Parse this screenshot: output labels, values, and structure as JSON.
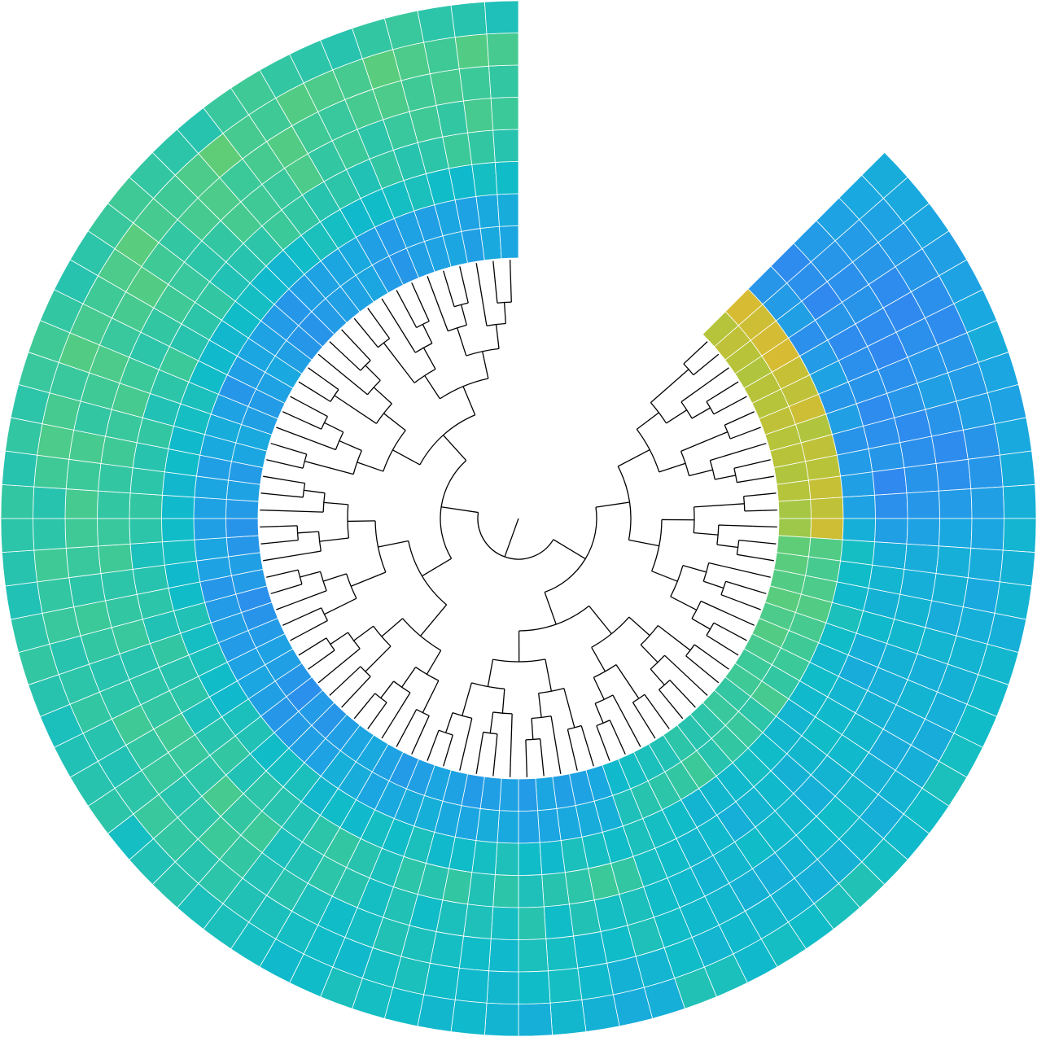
{
  "chart_data": {
    "type": "circular_heatmap",
    "vlim": [
      0,
      100
    ],
    "colormap": [
      {
        "value": 0,
        "color": "#3a7af5"
      },
      {
        "value": 25,
        "color": "#1aa8e0"
      },
      {
        "value": 40,
        "color": "#0fbcc8"
      },
      {
        "value": 55,
        "color": "#3cc99a"
      },
      {
        "value": 70,
        "color": "#6ccf6a"
      },
      {
        "value": 85,
        "color": "#b5c43a"
      },
      {
        "value": 100,
        "color": "#e8b830"
      }
    ],
    "values": [
      [
        85,
        88,
        86,
        84,
        86,
        85,
        88,
        85,
        86,
        84,
        85,
        82,
        80,
        66,
        64,
        62,
        64,
        60,
        62,
        58,
        55,
        56,
        52,
        54,
        50,
        48,
        50,
        46,
        44,
        42,
        38,
        25,
        22,
        20,
        24,
        18,
        22,
        20,
        18,
        22,
        24,
        20,
        18,
        22,
        26,
        24,
        20,
        15,
        18,
        12,
        16,
        20,
        22,
        18,
        14,
        12,
        18,
        20,
        16,
        14,
        18,
        22,
        18,
        24,
        26,
        20,
        18,
        22,
        25,
        20,
        16,
        14,
        18,
        20,
        22,
        24,
        18,
        16,
        20,
        22,
        24,
        20,
        26,
        24
      ],
      [
        95,
        92,
        94,
        95,
        90,
        88,
        92,
        84,
        88,
        86,
        90,
        88,
        92,
        62,
        58,
        60,
        62,
        58,
        56,
        55,
        52,
        58,
        50,
        54,
        52,
        48,
        55,
        52,
        50,
        48,
        45,
        30,
        28,
        26,
        24,
        22,
        26,
        28,
        24,
        26,
        30,
        28,
        26,
        24,
        28,
        30,
        22,
        20,
        18,
        16,
        20,
        24,
        22,
        18,
        20,
        18,
        16,
        22,
        24,
        20,
        22,
        24,
        20,
        26,
        28,
        22,
        16,
        20,
        24,
        22,
        18,
        16,
        20,
        22,
        24,
        26,
        20,
        18,
        22,
        20,
        24,
        22,
        26,
        28
      ],
      [
        15,
        18,
        20,
        12,
        18,
        22,
        16,
        20,
        14,
        18,
        20,
        22,
        30,
        42,
        40,
        38,
        44,
        40,
        36,
        40,
        38,
        35,
        36,
        40,
        42,
        38,
        36,
        34,
        40,
        42,
        44,
        40,
        42,
        44,
        38,
        40,
        45,
        42,
        40,
        38,
        44,
        40,
        42,
        38,
        40,
        36,
        44,
        42,
        40,
        46,
        44,
        38,
        40,
        44,
        42,
        46,
        40,
        38,
        42,
        40,
        38,
        36,
        40,
        38,
        42,
        44,
        40,
        38,
        36,
        40,
        42,
        38,
        35,
        40,
        44,
        42,
        38,
        40,
        42,
        44,
        40,
        38,
        42,
        40
      ],
      [
        10,
        12,
        8,
        15,
        10,
        12,
        14,
        10,
        12,
        16,
        8,
        12,
        20,
        30,
        35,
        32,
        38,
        30,
        28,
        35,
        38,
        40,
        36,
        32,
        38,
        35,
        30,
        38,
        36,
        40,
        42,
        52,
        55,
        50,
        48,
        45,
        50,
        46,
        52,
        48,
        50,
        44,
        48,
        52,
        50,
        46,
        48,
        50,
        46,
        52,
        48,
        44,
        50,
        48,
        52,
        46,
        50,
        48,
        44,
        50,
        52,
        50,
        48,
        52,
        46,
        50,
        55,
        48,
        50,
        52,
        46,
        48,
        50,
        55,
        52,
        48,
        50,
        46,
        52,
        48,
        50,
        55,
        52,
        48
      ],
      [
        18,
        15,
        12,
        14,
        10,
        8,
        12,
        15,
        10,
        12,
        14,
        16,
        22,
        28,
        30,
        34,
        36,
        32,
        30,
        32,
        36,
        38,
        34,
        30,
        36,
        38,
        40,
        36,
        34,
        38,
        40,
        44,
        42,
        46,
        40,
        48,
        42,
        45,
        44,
        40,
        46,
        42,
        48,
        50,
        46,
        44,
        55,
        52,
        58,
        50,
        54,
        56,
        52,
        50,
        48,
        54,
        52,
        50,
        56,
        54,
        52,
        52,
        56,
        54,
        58,
        55,
        50,
        52,
        56,
        54,
        50,
        52,
        58,
        56,
        54,
        60,
        52,
        55,
        50,
        54,
        56,
        52,
        58,
        55
      ],
      [
        22,
        18,
        15,
        10,
        8,
        12,
        16,
        20,
        14,
        10,
        12,
        18,
        25,
        30,
        32,
        28,
        35,
        30,
        34,
        30,
        28,
        32,
        36,
        40,
        38,
        34,
        30,
        32,
        36,
        38,
        40,
        45,
        40,
        38,
        42,
        44,
        38,
        40,
        42,
        44,
        46,
        42,
        40,
        44,
        48,
        46,
        52,
        55,
        50,
        48,
        54,
        52,
        56,
        50,
        48,
        52,
        55,
        50,
        54,
        56,
        58,
        55,
        58,
        52,
        56,
        60,
        54,
        58,
        62,
        56,
        52,
        58,
        60,
        55,
        58,
        62,
        56,
        54,
        58,
        60,
        56,
        58,
        55,
        52
      ],
      [
        25,
        22,
        18,
        16,
        12,
        10,
        15,
        18,
        20,
        14,
        16,
        20,
        24,
        28,
        26,
        30,
        34,
        32,
        30,
        28,
        30,
        34,
        30,
        36,
        32,
        30,
        34,
        36,
        38,
        35,
        40,
        35,
        32,
        38,
        42,
        40,
        36,
        38,
        40,
        44,
        42,
        38,
        40,
        42,
        44,
        46,
        50,
        48,
        52,
        54,
        50,
        46,
        48,
        52,
        50,
        48,
        54,
        52,
        56,
        50,
        48,
        56,
        60,
        58,
        54,
        62,
        58,
        56,
        60,
        64,
        58,
        56,
        60,
        66,
        58,
        56,
        62,
        60,
        58,
        64,
        60,
        56,
        62,
        58
      ],
      [
        28,
        26,
        24,
        20,
        22,
        25,
        28,
        24,
        22,
        26,
        28,
        30,
        35,
        32,
        34,
        30,
        36,
        38,
        40,
        42,
        44,
        40,
        38,
        42,
        46,
        44,
        40,
        42,
        38,
        44,
        46,
        30,
        28,
        32,
        36,
        30,
        34,
        38,
        36,
        40,
        42,
        44,
        40,
        38,
        42,
        44,
        44,
        48,
        46,
        42,
        50,
        48,
        46,
        44,
        48,
        52,
        50,
        46,
        48,
        50,
        52,
        48,
        52,
        50,
        54,
        56,
        52,
        48,
        50,
        54,
        56,
        52,
        50,
        48,
        54,
        56,
        52,
        50,
        48,
        52,
        54,
        50,
        48,
        45
      ]
    ]
  }
}
